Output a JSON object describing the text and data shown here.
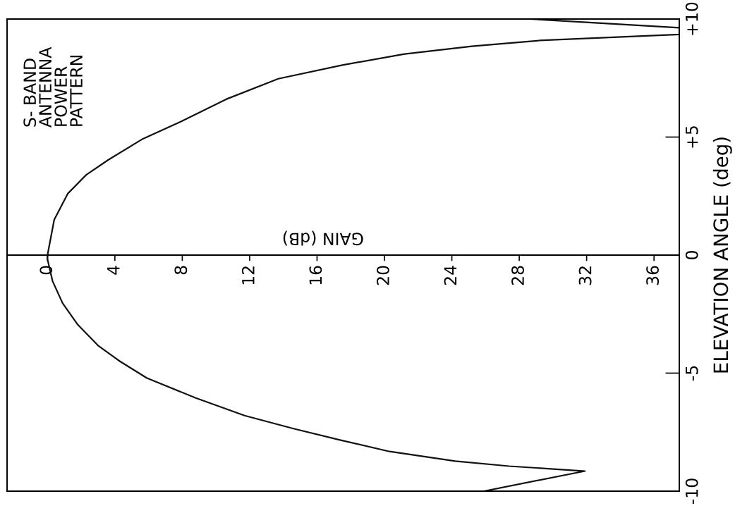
{
  "chart_data": {
    "type": "line",
    "title": "S- BAND\nANTENNA\nPOWER\nPATTERN",
    "xlabel": "GAIN (dB)",
    "ylabel": "ELEVATION ANGLE (deg)",
    "xlim": [
      -2.4,
      37.5
    ],
    "xticks": [
      0,
      4,
      8,
      12,
      16,
      20,
      24,
      28,
      32,
      36
    ],
    "ylim": [
      -10,
      10
    ],
    "yticks": [
      {
        "value": -10,
        "label": "-10"
      },
      {
        "value": -5,
        "label": "-5"
      },
      0,
      {
        "value": 5,
        "label": "+5"
      },
      {
        "value": 10,
        "label": "+10"
      }
    ],
    "grid": false,
    "series": [
      {
        "color": "#111111",
        "x": [
          25.9,
          31.9,
          27.4,
          24.2,
          20.3,
          17.4,
          14.6,
          11.7,
          8.8,
          5.9,
          4.3,
          3.0,
          1.8,
          0.9,
          0.3,
          0.0,
          0.0,
          0.4,
          1.2,
          2.3,
          3.6,
          5.6,
          7.9,
          10.6,
          13.7,
          17.5,
          21.2,
          25.2,
          29.2,
          37.5,
          37.5,
          28.7
        ],
        "values": [
          -10,
          -9.15,
          -8.94,
          -8.73,
          -8.32,
          -7.84,
          -7.35,
          -6.8,
          -6.05,
          -5.21,
          -4.5,
          -3.83,
          -2.95,
          -2.04,
          -1.1,
          -0.18,
          0,
          1.5,
          2.6,
          3.4,
          4.03,
          4.9,
          5.65,
          6.6,
          7.47,
          8.05,
          8.52,
          8.85,
          9.09,
          9.35,
          9.63,
          10
        ]
      }
    ]
  }
}
